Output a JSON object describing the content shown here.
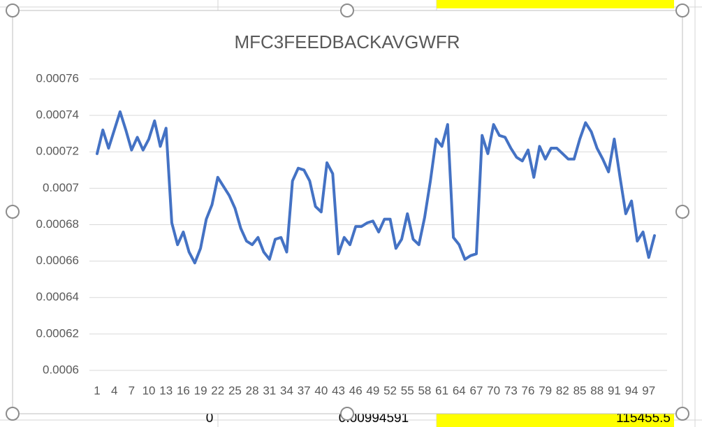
{
  "chart_data": {
    "type": "line",
    "title": "MFC3FEEDBACKAVGWFR",
    "categories": [
      1,
      null,
      null,
      4,
      null,
      null,
      7,
      null,
      null,
      10,
      null,
      null,
      13,
      null,
      null,
      16,
      null,
      null,
      19,
      null,
      null,
      22,
      null,
      null,
      25,
      null,
      null,
      28,
      null,
      null,
      31,
      null,
      null,
      34,
      null,
      null,
      37,
      null,
      null,
      40,
      null,
      null,
      43,
      null,
      null,
      46,
      null,
      null,
      49,
      null,
      null,
      52,
      null,
      null,
      55,
      null,
      null,
      58,
      null,
      null,
      61,
      null,
      null,
      64,
      null,
      null,
      67,
      null,
      null,
      70,
      null,
      null,
      73,
      null,
      null,
      76,
      null,
      null,
      79,
      null,
      null,
      82,
      null,
      null,
      85,
      null,
      null,
      88,
      null,
      null,
      91,
      null,
      null,
      94,
      null,
      null,
      97,
      null
    ],
    "values": [
      0.000719,
      0.000732,
      0.000722,
      0.000732,
      0.000742,
      0.000732,
      0.000721,
      0.000728,
      0.000721,
      0.000727,
      0.000737,
      0.000723,
      0.000733,
      0.000681,
      0.000669,
      0.000676,
      0.000665,
      0.000659,
      0.000667,
      0.000683,
      0.000691,
      0.000706,
      0.000701,
      0.000696,
      0.000689,
      0.000678,
      0.000671,
      0.000669,
      0.000673,
      0.000665,
      0.000661,
      0.000672,
      0.000673,
      0.000665,
      0.000704,
      0.000711,
      0.00071,
      0.000704,
      0.00069,
      0.000687,
      0.000714,
      0.000708,
      0.000664,
      0.000673,
      0.000669,
      0.000679,
      0.000679,
      0.000681,
      0.000682,
      0.000676,
      0.000683,
      0.000683,
      0.000667,
      0.000672,
      0.000686,
      0.000672,
      0.000669,
      0.000684,
      0.000704,
      0.000727,
      0.000723,
      0.000735,
      0.000673,
      0.000669,
      0.000661,
      0.000663,
      0.000664,
      0.000729,
      0.000719,
      0.000735,
      0.000729,
      0.000728,
      0.000722,
      0.000717,
      0.000715,
      0.000721,
      0.000706,
      0.000723,
      0.000716,
      0.000722,
      0.000722,
      0.000719,
      0.000716,
      0.000716,
      0.000727,
      0.000736,
      0.000731,
      0.000722,
      0.000716,
      0.000709,
      0.000727,
      0.000706,
      0.000686,
      0.000693,
      0.000671,
      0.000676,
      0.000662,
      0.000674
    ],
    "color": "#4472c4",
    "ylim": [
      0.0006,
      0.00076
    ],
    "yticks": [
      0.0006,
      0.00062,
      0.00064,
      0.00066,
      0.00068,
      0.0007,
      0.00072,
      0.00074,
      0.00076
    ],
    "grid": true
  },
  "sheet": {
    "cells": [
      "0",
      "0.00994591",
      "115455.5"
    ]
  }
}
